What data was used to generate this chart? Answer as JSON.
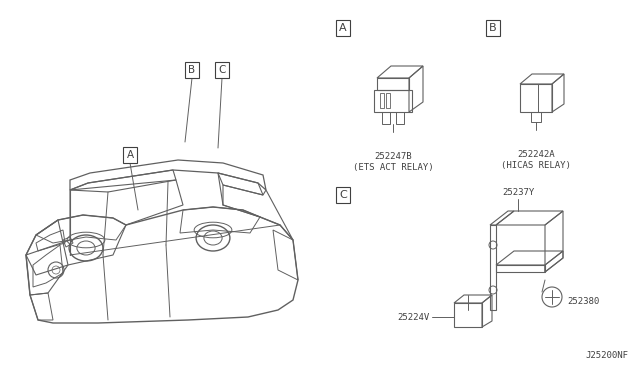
{
  "bg_color": "#ffffff",
  "line_color": "#606060",
  "text_color": "#404040",
  "diagram_code": "J25200NF",
  "part_A_num": "252247B",
  "part_A_name": "(ETS ACT RELAY)",
  "part_B_num": "252242A",
  "part_B_name": "(HICAS RELAY)",
  "part_C1": "25237Y",
  "part_C2": "25224V",
  "part_C3": "252380"
}
